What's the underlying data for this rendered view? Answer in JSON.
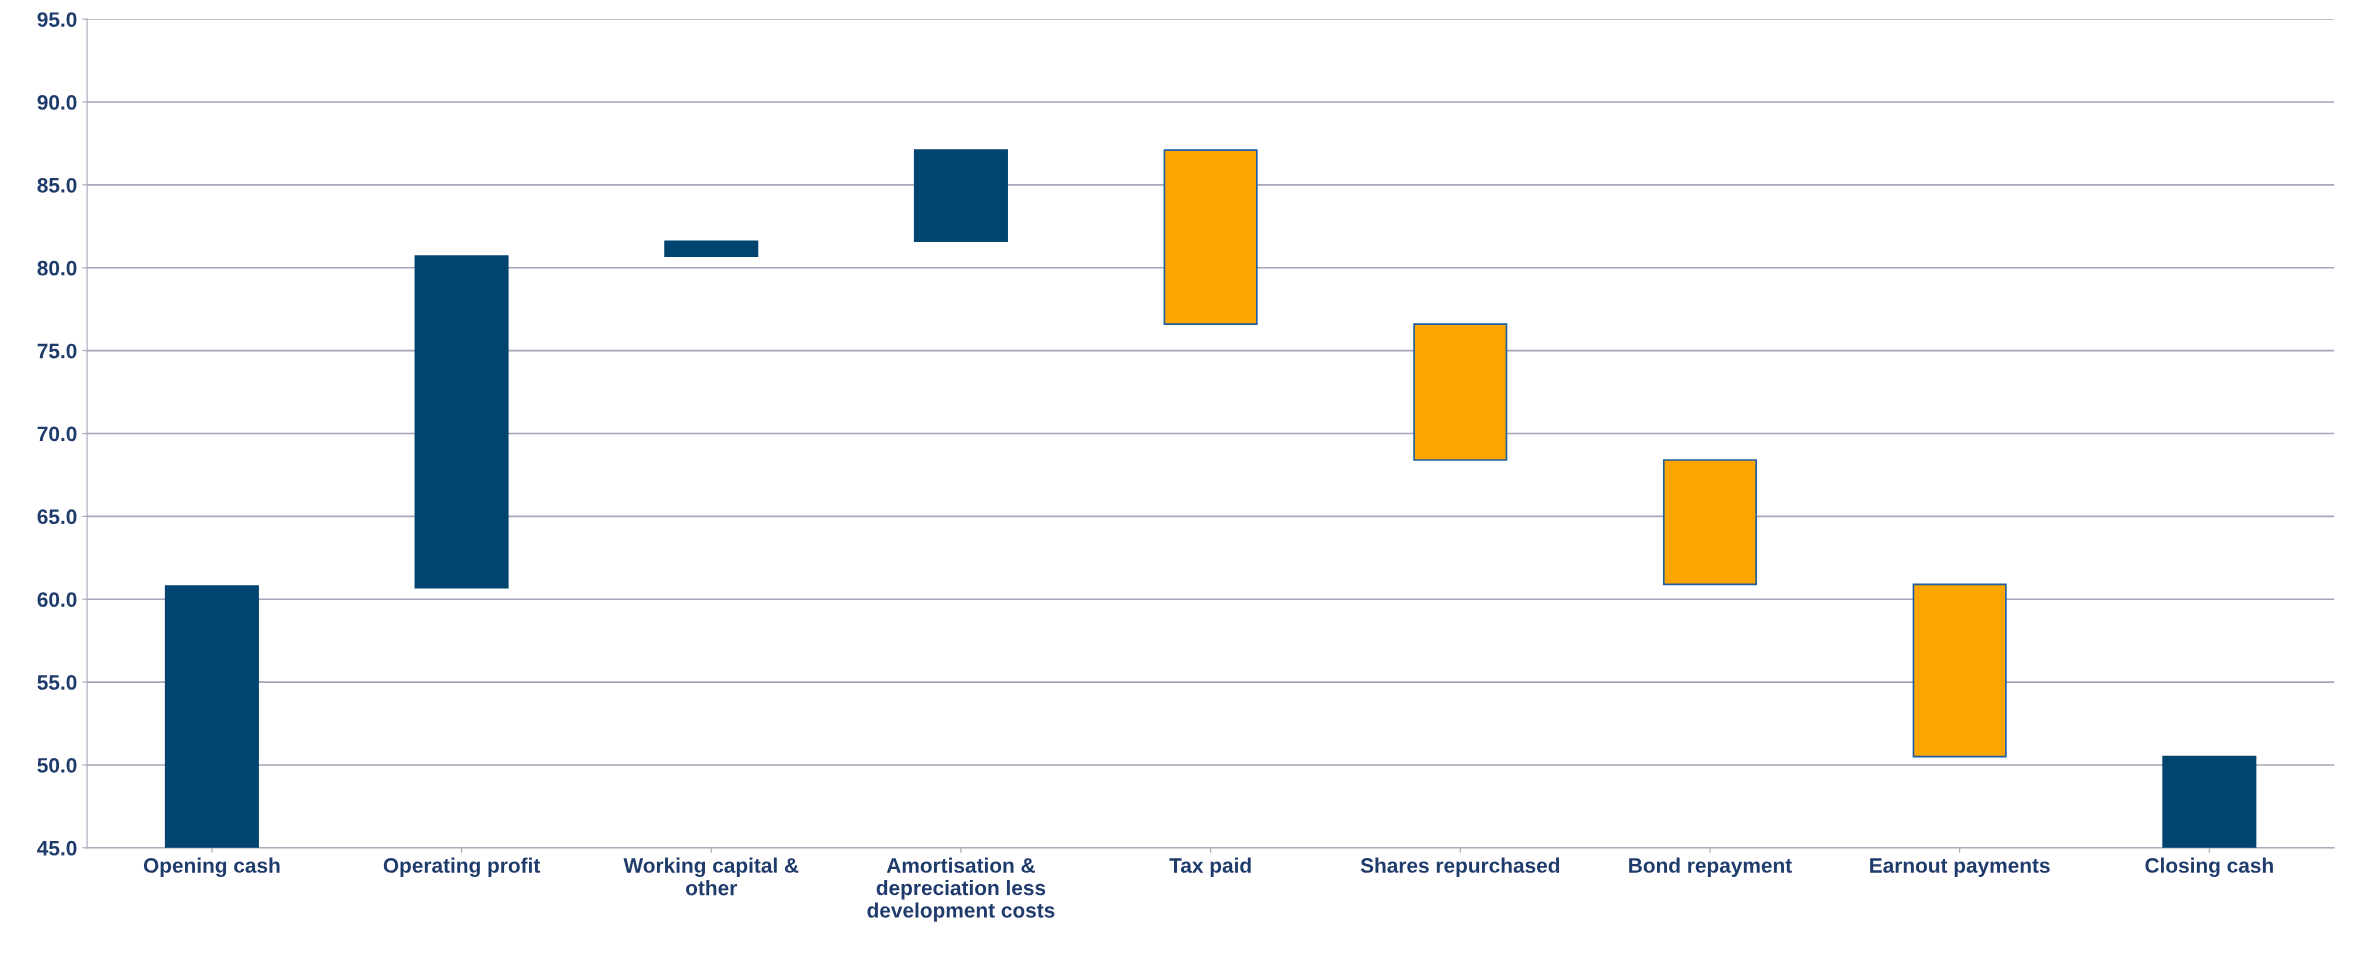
{
  "chart_data": {
    "type": "bar",
    "categories": [
      "Opening cash",
      "Operating profit",
      "Working capital &\nother",
      "Amortisation &\ndepreciation less\ndevelopment costs",
      "Tax paid",
      "Shares repurchased",
      "Bond repayment",
      "Earnout payments",
      "Closing cash"
    ],
    "values": [
      60.8,
      20.0,
      0.9,
      5.5,
      -10.5,
      -8.2,
      -7.5,
      -10.4,
      50.5
    ],
    "base": [
      null,
      60.7,
      80.7,
      81.6,
      87.1,
      76.6,
      68.4,
      60.9,
      null
    ],
    "colors": [
      "#00446f",
      "#00446f",
      "#00446f",
      "#00446f",
      "#ffa500",
      "#ffa500",
      "#ffa500",
      "#ffa500",
      "#00446f"
    ],
    "ylim": [
      45,
      95
    ],
    "yticks": [
      {
        "value": 45,
        "label": "45.0"
      },
      {
        "value": 50,
        "label": "50.0"
      },
      {
        "value": 55,
        "label": "55.0"
      },
      {
        "value": 60,
        "label": "60.0"
      },
      {
        "value": 65,
        "label": "65.0"
      },
      {
        "value": 70,
        "label": "70.0"
      },
      {
        "value": 75,
        "label": "75.0"
      },
      {
        "value": 80,
        "label": "80.0"
      },
      {
        "value": 85,
        "label": "85.0"
      },
      {
        "value": 90,
        "label": "90.0"
      },
      {
        "value": 95,
        "label": "95.0"
      }
    ],
    "grid": "y",
    "legend": false
  }
}
